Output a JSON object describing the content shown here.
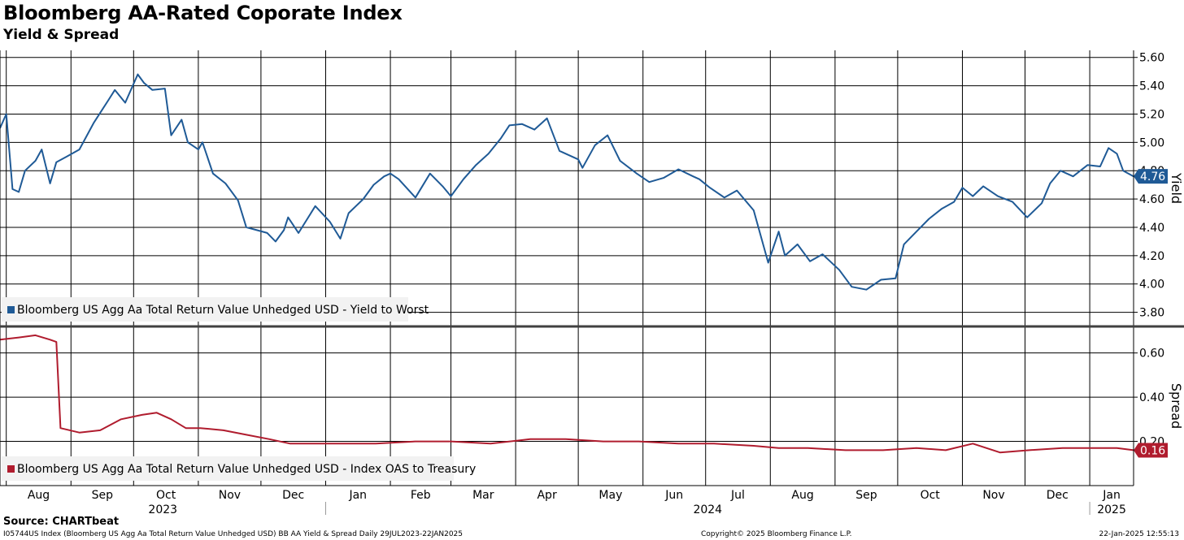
{
  "header": {
    "title": "Bloomberg AA-Rated Coporate Index",
    "subtitle": "Yield & Spread"
  },
  "footer": {
    "source": "Source: CHARTbeat",
    "description": "I05744US Index (Bloomberg US Agg Aa Total Return Value Unhedged USD) BB AA Yield & Spread  Daily 29JUL2023-22JAN2025",
    "copyright": "Copyright© 2025 Bloomberg Finance L.P.",
    "timestamp": "22-Jan-2025 12:55:13"
  },
  "chart_data": [
    {
      "type": "line",
      "panel": "top",
      "axis_label": "Yield",
      "ylim": [
        3.7,
        5.65
      ],
      "y_ticks": [
        "5.60",
        "5.40",
        "5.20",
        "5.00",
        "4.80",
        "4.60",
        "4.40",
        "4.20",
        "4.00",
        "3.80"
      ],
      "y_tick_values": [
        5.6,
        5.4,
        5.2,
        5.0,
        4.8,
        4.6,
        4.4,
        4.2,
        4.0,
        3.8
      ],
      "last_value_label": "4.76",
      "grid": true,
      "legend": "bottom-left",
      "series": [
        {
          "name": "Bloomberg US Agg Aa Total Return Value Unhedged USD - Yield to Worst",
          "color": "#1f5a96",
          "x": [
            "2023-07-29",
            "2023-08-01",
            "2023-08-04",
            "2023-08-07",
            "2023-08-10",
            "2023-08-15",
            "2023-08-18",
            "2023-08-22",
            "2023-08-25",
            "2023-08-30",
            "2023-09-05",
            "2023-09-12",
            "2023-09-19",
            "2023-09-22",
            "2023-09-27",
            "2023-10-03",
            "2023-10-06",
            "2023-10-10",
            "2023-10-16",
            "2023-10-19",
            "2023-10-24",
            "2023-10-27",
            "2023-11-01",
            "2023-11-03",
            "2023-11-08",
            "2023-11-14",
            "2023-11-20",
            "2023-11-24",
            "2023-11-29",
            "2023-12-04",
            "2023-12-08",
            "2023-12-12",
            "2023-12-14",
            "2023-12-19",
            "2023-12-27",
            "2024-01-03",
            "2024-01-08",
            "2024-01-12",
            "2024-01-19",
            "2024-01-24",
            "2024-01-29",
            "2024-02-01",
            "2024-02-05",
            "2024-02-13",
            "2024-02-20",
            "2024-02-26",
            "2024-03-01",
            "2024-03-07",
            "2024-03-13",
            "2024-03-19",
            "2024-03-25",
            "2024-03-29",
            "2024-04-04",
            "2024-04-10",
            "2024-04-16",
            "2024-04-22",
            "2024-04-25",
            "2024-05-01",
            "2024-05-03",
            "2024-05-09",
            "2024-05-15",
            "2024-05-21",
            "2024-05-29",
            "2024-06-04",
            "2024-06-11",
            "2024-06-18",
            "2024-06-25",
            "2024-06-28",
            "2024-07-03",
            "2024-07-10",
            "2024-07-16",
            "2024-07-24",
            "2024-07-31",
            "2024-08-05",
            "2024-08-08",
            "2024-08-14",
            "2024-08-20",
            "2024-08-26",
            "2024-09-03",
            "2024-09-09",
            "2024-09-16",
            "2024-09-23",
            "2024-09-30",
            "2024-10-04",
            "2024-10-10",
            "2024-10-16",
            "2024-10-22",
            "2024-10-28",
            "2024-11-01",
            "2024-11-06",
            "2024-11-11",
            "2024-11-18",
            "2024-11-25",
            "2024-12-02",
            "2024-12-09",
            "2024-12-13",
            "2024-12-18",
            "2024-12-24",
            "2024-12-31",
            "2025-01-06",
            "2025-01-10",
            "2025-01-14",
            "2025-01-17",
            "2025-01-22"
          ],
          "values": [
            5.1,
            5.2,
            4.67,
            4.65,
            4.8,
            4.87,
            4.95,
            4.71,
            4.86,
            4.9,
            4.95,
            5.14,
            5.3,
            5.37,
            5.28,
            5.48,
            5.42,
            5.37,
            5.38,
            5.05,
            5.16,
            5.0,
            4.95,
            5.0,
            4.78,
            4.71,
            4.59,
            4.4,
            4.38,
            4.36,
            4.3,
            4.38,
            4.47,
            4.36,
            4.55,
            4.44,
            4.32,
            4.5,
            4.6,
            4.7,
            4.76,
            4.78,
            4.74,
            4.61,
            4.78,
            4.69,
            4.62,
            4.74,
            4.84,
            4.92,
            5.03,
            5.12,
            5.13,
            5.09,
            5.17,
            4.94,
            4.92,
            4.88,
            4.82,
            4.98,
            5.05,
            4.87,
            4.78,
            4.72,
            4.75,
            4.81,
            4.76,
            4.74,
            4.68,
            4.61,
            4.66,
            4.52,
            4.15,
            4.37,
            4.2,
            4.28,
            4.16,
            4.21,
            4.1,
            3.98,
            3.96,
            4.03,
            4.04,
            4.28,
            4.37,
            4.46,
            4.53,
            4.58,
            4.68,
            4.62,
            4.69,
            4.62,
            4.58,
            4.47,
            4.57,
            4.71,
            4.8,
            4.76,
            4.84,
            4.83,
            4.96,
            4.92,
            4.8,
            4.76
          ]
        }
      ]
    },
    {
      "type": "line",
      "panel": "bottom",
      "axis_label": "Spread",
      "ylim": [
        0.0,
        0.72
      ],
      "y_ticks": [
        "0.60",
        "0.40",
        "0.20"
      ],
      "y_tick_values": [
        0.6,
        0.4,
        0.2
      ],
      "last_value_label": "0.16",
      "grid": true,
      "legend": "bottom-left",
      "series": [
        {
          "name": "Bloomberg US Agg Aa Total Return Value Unhedged USD - Index OAS to Treasury",
          "color": "#b01c2e",
          "x": [
            "2023-07-29",
            "2023-08-07",
            "2023-08-15",
            "2023-08-22",
            "2023-08-25",
            "2023-08-27",
            "2023-09-05",
            "2023-09-15",
            "2023-09-25",
            "2023-10-05",
            "2023-10-12",
            "2023-10-19",
            "2023-10-26",
            "2023-11-02",
            "2023-11-13",
            "2023-11-24",
            "2023-12-05",
            "2023-12-15",
            "2023-12-22",
            "2024-01-08",
            "2024-01-25",
            "2024-02-13",
            "2024-03-01",
            "2024-03-20",
            "2024-04-08",
            "2024-04-25",
            "2024-05-13",
            "2024-05-30",
            "2024-06-18",
            "2024-07-05",
            "2024-07-24",
            "2024-08-05",
            "2024-08-19",
            "2024-09-06",
            "2024-09-24",
            "2024-10-10",
            "2024-10-24",
            "2024-11-06",
            "2024-11-19",
            "2024-12-03",
            "2024-12-19",
            "2025-01-06",
            "2025-01-14",
            "2025-01-22"
          ],
          "values": [
            0.66,
            0.67,
            0.68,
            0.66,
            0.65,
            0.26,
            0.24,
            0.25,
            0.3,
            0.32,
            0.33,
            0.3,
            0.26,
            0.26,
            0.25,
            0.23,
            0.21,
            0.19,
            0.19,
            0.19,
            0.19,
            0.2,
            0.2,
            0.19,
            0.21,
            0.21,
            0.2,
            0.2,
            0.19,
            0.19,
            0.18,
            0.17,
            0.17,
            0.16,
            0.16,
            0.17,
            0.16,
            0.19,
            0.15,
            0.16,
            0.17,
            0.17,
            0.17,
            0.16
          ]
        }
      ]
    }
  ],
  "x_axis": {
    "months": [
      "Aug",
      "Sep",
      "Oct",
      "Nov",
      "Dec",
      "Jan",
      "Feb",
      "Mar",
      "Apr",
      "May",
      "Jun",
      "Jul",
      "Aug",
      "Sep",
      "Oct",
      "Nov",
      "Dec",
      "Jan"
    ],
    "month_dates": [
      "2023-08-01",
      "2023-09-01",
      "2023-10-01",
      "2023-11-01",
      "2023-12-01",
      "2024-01-01",
      "2024-02-01",
      "2024-03-01",
      "2024-04-01",
      "2024-05-01",
      "2024-06-01",
      "2024-07-01",
      "2024-08-01",
      "2024-09-01",
      "2024-10-01",
      "2024-11-01",
      "2024-12-01",
      "2025-01-01"
    ],
    "years": [
      "2023",
      "2024",
      "2025"
    ],
    "year_dates": [
      "2023-07-29",
      "2024-01-01",
      "2025-01-01"
    ],
    "start": "2023-07-29",
    "end": "2025-01-22"
  }
}
